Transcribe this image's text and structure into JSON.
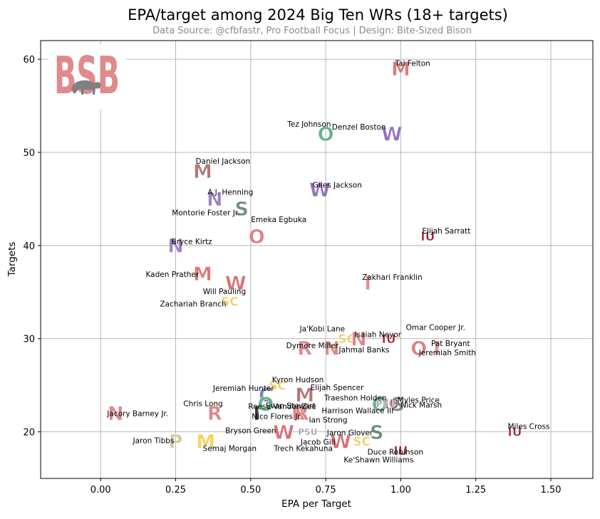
{
  "chart_data": {
    "type": "scatter",
    "title": "EPA/target among 2024 Big Ten WRs (18+ targets)",
    "subtitle": "Data Source: @cfbfastr, Pro Football Focus | Design: Bite-Sized Bison",
    "xlabel": "EPA per Target",
    "ylabel": "Targets",
    "xlim": [
      -0.2,
      1.64
    ],
    "ylim": [
      15,
      62
    ],
    "xticks": [
      0.0,
      0.25,
      0.5,
      0.75,
      1.0,
      1.25,
      1.5
    ],
    "xtick_labels": [
      "0.00",
      "0.25",
      "0.50",
      "0.75",
      "1.00",
      "1.25",
      "1.50"
    ],
    "yticks": [
      20,
      30,
      40,
      50,
      60
    ],
    "ytick_labels": [
      "20",
      "30",
      "40",
      "50",
      "60"
    ],
    "grid": true,
    "watermark": "BSB",
    "points": [
      {
        "name": "Tai Felton",
        "team": "Maryland",
        "logo": "M",
        "color": "#e06f73",
        "x": 1.0,
        "y": 59
      },
      {
        "name": "Tez Johnson",
        "team": "Oregon",
        "logo": "O",
        "color": "#5fb08a",
        "x": 0.75,
        "y": 52
      },
      {
        "name": "Denzel Boston",
        "team": "Washington",
        "logo": "W",
        "color": "#8e6bbf",
        "x": 0.97,
        "y": 52
      },
      {
        "name": "Daniel Jackson",
        "team": "Minnesota",
        "logo": "M",
        "color": "#b07070",
        "x": 0.34,
        "y": 48
      },
      {
        "name": "Giles Jackson",
        "team": "Washington",
        "logo": "W",
        "color": "#8e6bbf",
        "x": 0.73,
        "y": 46
      },
      {
        "name": "A.J. Henning",
        "team": "Northwestern",
        "logo": "N",
        "color": "#9a7cc0",
        "x": 0.38,
        "y": 45
      },
      {
        "name": "Montorie Foster Jr.",
        "team": "Michigan State",
        "logo": "S",
        "color": "#6a8a7a",
        "x": 0.47,
        "y": 44
      },
      {
        "name": "Emeka Egbuka",
        "team": "Ohio State",
        "logo": "O",
        "color": "#e07a7d",
        "x": 0.52,
        "y": 41
      },
      {
        "name": "Elijah Sarratt",
        "team": "Indiana",
        "logo": "IU",
        "color": "#9b1c2c",
        "x": 1.09,
        "y": 41
      },
      {
        "name": "Bryce Kirtz",
        "team": "Northwestern",
        "logo": "N",
        "color": "#9a7cc0",
        "x": 0.25,
        "y": 40
      },
      {
        "name": "Kaden Prather",
        "team": "Maryland",
        "logo": "M",
        "color": "#e06f73",
        "x": 0.34,
        "y": 37
      },
      {
        "name": "Will Pauling",
        "team": "Wisconsin",
        "logo": "W",
        "color": "#d66a6e",
        "x": 0.45,
        "y": 36
      },
      {
        "name": "Zakhari Franklin",
        "team": "Illinois",
        "logo": "I",
        "color": "#e5888b",
        "x": 0.89,
        "y": 36
      },
      {
        "name": "Zachariah Branch",
        "team": "USC",
        "logo": "SC",
        "color": "#f2c64a",
        "x": 0.43,
        "y": 34
      },
      {
        "name": "Ja'Kobi Lane",
        "team": "USC",
        "logo": "SC",
        "color": "#f2c64a",
        "x": 0.82,
        "y": 30
      },
      {
        "name": "Isaiah Neyor",
        "team": "Nebraska",
        "logo": "N",
        "color": "#e08083",
        "x": 0.86,
        "y": 30
      },
      {
        "name": "Omar Cooper Jr.",
        "team": "Indiana",
        "logo": "IU",
        "color": "#9b1c2c",
        "x": 0.96,
        "y": 30
      },
      {
        "name": "Pat Bryant",
        "team": "Illinois",
        "logo": "I",
        "color": "#e5888b",
        "x": 1.12,
        "y": 29
      },
      {
        "name": "Dymere Miller",
        "team": "Rutgers",
        "logo": "R",
        "color": "#e08083",
        "x": 0.68,
        "y": 29
      },
      {
        "name": "Jahmal Banks",
        "team": "Nebraska",
        "logo": "N",
        "color": "#e08083",
        "x": 0.77,
        "y": 29
      },
      {
        "name": "Jeremiah Smith",
        "team": "Ohio State",
        "logo": "O",
        "color": "#e07a7d",
        "x": 1.06,
        "y": 29
      },
      {
        "name": "Kyron Hudson",
        "team": "USC",
        "logo": "SC",
        "color": "#f2c64a",
        "x": 0.59,
        "y": 25
      },
      {
        "name": "Elijah Spencer",
        "team": "Minnesota",
        "logo": "M",
        "color": "#b07070",
        "x": 0.68,
        "y": 24
      },
      {
        "name": "Jeremiah Hunter",
        "team": "California",
        "logo": "C",
        "color": "#7a7cc0",
        "x": 0.55,
        "y": 24
      },
      {
        "name": "Evan Stewart",
        "team": "Oregon",
        "logo": "O",
        "color": "#5fb08a",
        "x": 0.55,
        "y": 23
      },
      {
        "name": "Myles Price",
        "team": "Indiana",
        "logo": "IU",
        "color": "#9b1c2c",
        "x": 0.97,
        "y": 23
      },
      {
        "name": "Traeshon Holden",
        "team": "Oregon",
        "logo": "O",
        "color": "#5fb08a",
        "x": 0.93,
        "y": 23
      },
      {
        "name": "Nick Marsh",
        "team": "Michigan State",
        "logo": "S",
        "color": "#6a8a7a",
        "x": 0.99,
        "y": 23
      },
      {
        "name": "Harrison Wallace III",
        "team": "Penn State",
        "logo": "PSU",
        "color": "#8a8a9a",
        "x": 0.95,
        "y": 23
      },
      {
        "name": "Chris Long",
        "team": "Rutgers",
        "logo": "R",
        "color": "#e08083",
        "x": 0.38,
        "y": 22
      },
      {
        "name": "Jacory Barney Jr.",
        "team": "Nebraska",
        "logo": "N",
        "color": "#e08083",
        "x": 0.05,
        "y": 22
      },
      {
        "name": "Reese Vander Zee",
        "team": "Iowa",
        "logo": "I",
        "color": "#333333",
        "x": 0.52,
        "y": 22
      },
      {
        "name": "Nico Flores Jr.",
        "team": "Rutgers",
        "logo": "R",
        "color": "#e08083",
        "x": 0.66,
        "y": 22
      },
      {
        "name": "Ian Strong",
        "team": "Rutgers",
        "logo": "R",
        "color": "#e08083",
        "x": 0.67,
        "y": 22
      },
      {
        "name": "Bryson Green",
        "team": "Wisconsin",
        "logo": "W",
        "color": "#d66a6e",
        "x": 0.61,
        "y": 20
      },
      {
        "name": "Jacob Gill",
        "team": "Penn State",
        "logo": "PSU",
        "color": "#8a8a9a",
        "x": 0.69,
        "y": 20
      },
      {
        "name": "Jaron Glover",
        "team": "Michigan State",
        "logo": "S",
        "color": "#6a8a7a",
        "x": 0.92,
        "y": 20
      },
      {
        "name": "Miles Cross",
        "team": "Indiana",
        "logo": "IU",
        "color": "#9b1c2c",
        "x": 1.38,
        "y": 20
      },
      {
        "name": "Jaron Tibbs",
        "team": "Purdue",
        "logo": "P",
        "color": "#d9c79a",
        "x": 0.25,
        "y": 19
      },
      {
        "name": "Semaj Morgan",
        "team": "Michigan",
        "logo": "M",
        "color": "#f5d24a",
        "x": 0.35,
        "y": 19
      },
      {
        "name": "Trech Kekahuna",
        "team": "Wisconsin",
        "logo": "W",
        "color": "#d66a6e",
        "x": 0.8,
        "y": 19
      },
      {
        "name": "Duce Robinson",
        "team": "USC",
        "logo": "SC",
        "color": "#f2c64a",
        "x": 0.87,
        "y": 19
      },
      {
        "name": "Ke'Shawn Williams",
        "team": "Indiana",
        "logo": "IU",
        "color": "#9b1c2c",
        "x": 1.0,
        "y": 18
      }
    ]
  },
  "label_offsets_note": "labels placed next to markers"
}
